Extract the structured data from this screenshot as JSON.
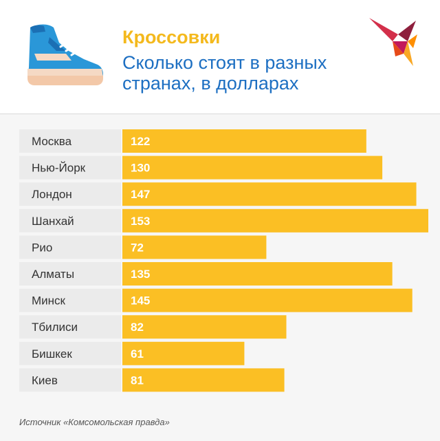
{
  "header": {
    "title": "Кроссовки",
    "subtitle": "Сколько стоят в разных странах, в долларах",
    "shoe_icon": "sneaker-icon",
    "logo_icon": "swallow-logo-icon"
  },
  "colors": {
    "bar": "#fbbf24",
    "title": "#f4b91d",
    "subtitle": "#1d6fc2",
    "label_bg": "#ebebeb"
  },
  "chart_data": {
    "type": "bar",
    "orientation": "horizontal",
    "title": "Кроссовки",
    "subtitle": "Сколько стоят в разных странах, в долларах",
    "categories": [
      "Москва",
      "Нью-Йорк",
      "Лондон",
      "Шанхай",
      "Рио",
      "Алматы",
      "Минск",
      "Тбилиси",
      "Бишкек",
      "Киев"
    ],
    "values": [
      122,
      130,
      147,
      153,
      72,
      135,
      145,
      82,
      61,
      81
    ],
    "value_labels": true,
    "grid": false,
    "legend": "none"
  },
  "footer": {
    "source": "Источник «Комсомольская правда»"
  }
}
